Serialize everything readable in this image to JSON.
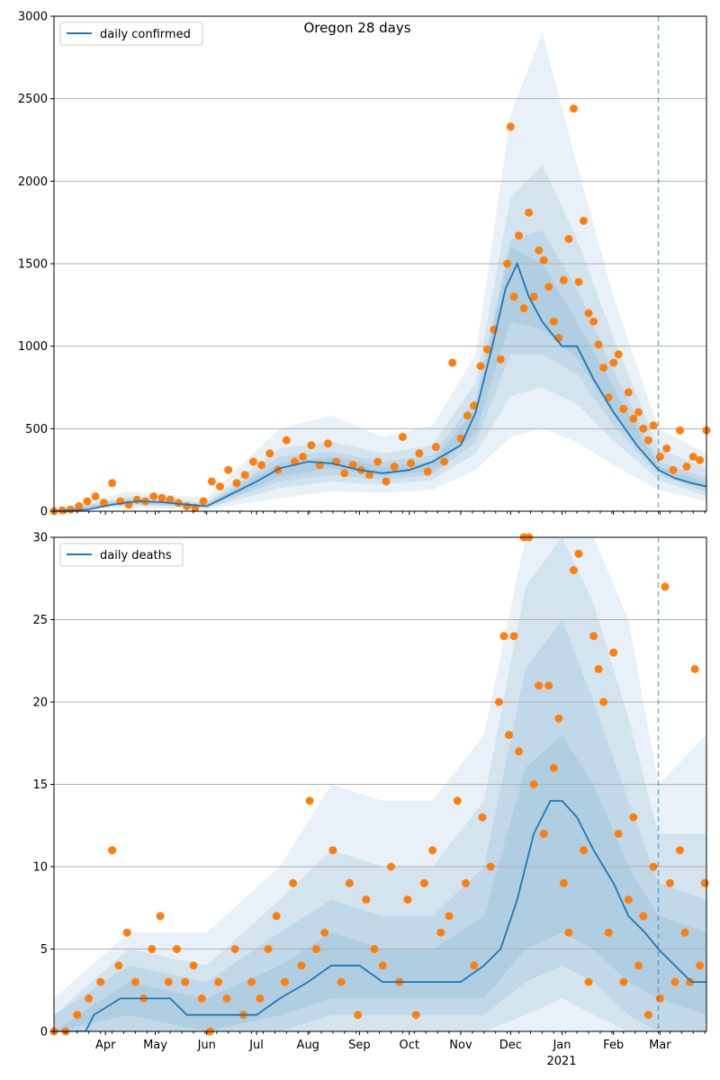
{
  "title": "Oregon 28 days",
  "colors": {
    "line": "#1f77b4",
    "dots": "#ff7f0e",
    "band": "#1f77b4",
    "grid": "#b0b0b0",
    "vline": "#1f77b4"
  },
  "chart_data": [
    {
      "type": "line",
      "legend": "daily confirmed",
      "legend_position": "upper-left",
      "grid": "horizontal",
      "ylim": [
        0,
        3000
      ],
      "yticks": [
        "0",
        "500",
        "1000",
        "1500",
        "2000",
        "2500",
        "3000"
      ],
      "x_range": [
        "2020-03-01",
        "2021-03-29"
      ],
      "forecast_start": "2021-02-28",
      "line": {
        "x": [
          "2020-03-01",
          "2020-03-21",
          "2020-04-05",
          "2020-04-20",
          "2020-05-05",
          "2020-05-20",
          "2020-06-01",
          "2020-06-15",
          "2020-07-01",
          "2020-07-15",
          "2020-08-01",
          "2020-08-15",
          "2020-09-01",
          "2020-09-15",
          "2020-10-01",
          "2020-10-15",
          "2020-11-01",
          "2020-11-10",
          "2020-11-20",
          "2020-11-28",
          "2020-12-05",
          "2020-12-12",
          "2020-12-20",
          "2021-01-01",
          "2021-01-10",
          "2021-01-20",
          "2021-02-01",
          "2021-02-15",
          "2021-02-28",
          "2021-03-10",
          "2021-03-20",
          "2021-03-29"
        ],
        "y": [
          0,
          10,
          40,
          60,
          55,
          40,
          30,
          100,
          180,
          260,
          300,
          290,
          250,
          230,
          250,
          300,
          400,
          600,
          1000,
          1350,
          1500,
          1300,
          1150,
          1000,
          1000,
          800,
          600,
          400,
          250,
          200,
          170,
          150
        ]
      },
      "bands": {
        "x": [
          "2020-03-01",
          "2020-04-15",
          "2020-06-01",
          "2020-07-15",
          "2020-08-15",
          "2020-09-15",
          "2020-10-15",
          "2020-11-10",
          "2020-12-01",
          "2020-12-20",
          "2021-01-10",
          "2021-02-01",
          "2021-02-28",
          "2021-03-29"
        ],
        "low80": [
          0,
          20,
          10,
          80,
          120,
          110,
          130,
          250,
          450,
          500,
          420,
          280,
          130,
          60
        ],
        "high80": [
          10,
          120,
          80,
          500,
          580,
          450,
          520,
          950,
          2400,
          2900,
          2100,
          1300,
          500,
          350
        ],
        "low60": [
          0,
          35,
          18,
          140,
          180,
          160,
          190,
          350,
          700,
          750,
          650,
          430,
          190,
          90
        ],
        "high60": [
          5,
          90,
          55,
          380,
          420,
          350,
          400,
          780,
          1900,
          2100,
          1650,
          1050,
          380,
          260
        ],
        "low40": [
          0,
          45,
          24,
          180,
          220,
          190,
          220,
          420,
          950,
          950,
          830,
          520,
          220,
          115
        ],
        "high40": [
          3,
          75,
          45,
          330,
          360,
          300,
          340,
          680,
          1650,
          1700,
          1350,
          850,
          300,
          200
        ],
        "low20": [
          0,
          50,
          28,
          210,
          260,
          215,
          245,
          480,
          1150,
          1100,
          930,
          580,
          245,
          135
        ],
        "high20": [
          2,
          65,
          38,
          290,
          330,
          270,
          300,
          620,
          1600,
          1500,
          1150,
          750,
          270,
          175
        ]
      },
      "observed": {
        "x": [
          "2020-03-01",
          "2020-03-06",
          "2020-03-11",
          "2020-03-16",
          "2020-03-21",
          "2020-03-26",
          "2020-03-31",
          "2020-04-05",
          "2020-04-10",
          "2020-04-15",
          "2020-04-20",
          "2020-04-25",
          "2020-04-30",
          "2020-05-05",
          "2020-05-10",
          "2020-05-15",
          "2020-05-20",
          "2020-05-25",
          "2020-05-30",
          "2020-06-04",
          "2020-06-09",
          "2020-06-14",
          "2020-06-19",
          "2020-06-24",
          "2020-06-29",
          "2020-07-04",
          "2020-07-09",
          "2020-07-14",
          "2020-07-19",
          "2020-07-24",
          "2020-07-29",
          "2020-08-03",
          "2020-08-08",
          "2020-08-13",
          "2020-08-18",
          "2020-08-23",
          "2020-08-28",
          "2020-09-02",
          "2020-09-07",
          "2020-09-12",
          "2020-09-17",
          "2020-09-22",
          "2020-09-27",
          "2020-10-02",
          "2020-10-07",
          "2020-10-12",
          "2020-10-17",
          "2020-10-22",
          "2020-10-27",
          "2020-11-01",
          "2020-11-05",
          "2020-11-09",
          "2020-11-13",
          "2020-11-17",
          "2020-11-21",
          "2020-11-25",
          "2020-11-29",
          "2020-12-01",
          "2020-12-03",
          "2020-12-06",
          "2020-12-09",
          "2020-12-12",
          "2020-12-15",
          "2020-12-18",
          "2020-12-21",
          "2020-12-24",
          "2020-12-27",
          "2020-12-30",
          "2021-01-02",
          "2021-01-05",
          "2021-01-08",
          "2021-01-11",
          "2021-01-14",
          "2021-01-17",
          "2021-01-20",
          "2021-01-23",
          "2021-01-26",
          "2021-01-29",
          "2021-02-01",
          "2021-02-04",
          "2021-02-07",
          "2021-02-10",
          "2021-02-13",
          "2021-02-16",
          "2021-02-19",
          "2021-02-22",
          "2021-02-25",
          "2021-03-01",
          "2021-03-05",
          "2021-03-09",
          "2021-03-13",
          "2021-03-17",
          "2021-03-21",
          "2021-03-25",
          "2021-03-29"
        ],
        "y": [
          0,
          5,
          10,
          30,
          60,
          90,
          50,
          170,
          60,
          40,
          70,
          60,
          90,
          80,
          70,
          50,
          30,
          20,
          60,
          180,
          150,
          250,
          170,
          220,
          300,
          280,
          350,
          250,
          430,
          300,
          330,
          400,
          280,
          410,
          300,
          230,
          280,
          250,
          220,
          300,
          180,
          270,
          450,
          290,
          350,
          240,
          390,
          300,
          900,
          440,
          580,
          640,
          880,
          980,
          1100,
          920,
          1500,
          2330,
          1300,
          1670,
          1230,
          1810,
          1300,
          1580,
          1520,
          1360,
          1150,
          1050,
          1400,
          1650,
          2440,
          1390,
          1760,
          1200,
          1150,
          1010,
          870,
          690,
          900,
          950,
          620,
          720,
          560,
          600,
          500,
          430,
          520,
          330,
          380,
          250,
          490,
          270,
          330,
          310,
          490
        ]
      }
    },
    {
      "type": "line",
      "legend": "daily deaths",
      "legend_position": "upper-left",
      "grid": "horizontal",
      "ylim": [
        0,
        30
      ],
      "yticks": [
        "0",
        "5",
        "10",
        "15",
        "20",
        "25",
        "30"
      ],
      "xtick_labels": [
        "Apr",
        "May",
        "Jun",
        "Jul",
        "Aug",
        "Sep",
        "Oct",
        "Nov",
        "Dec",
        "Jan",
        "Feb",
        "Mar"
      ],
      "xtick_dates": [
        "2020-04-01",
        "2020-05-01",
        "2020-06-01",
        "2020-07-01",
        "2020-08-01",
        "2020-09-01",
        "2020-10-01",
        "2020-11-01",
        "2020-12-01",
        "2021-01-01",
        "2021-02-01",
        "2021-03-01"
      ],
      "year_label": "2021",
      "x_range": [
        "2020-03-01",
        "2021-03-29"
      ],
      "forecast_start": "2021-02-28",
      "line": {
        "x": [
          "2020-03-01",
          "2020-03-20",
          "2020-03-25",
          "2020-04-10",
          "2020-05-01",
          "2020-05-10",
          "2020-05-20",
          "2020-06-01",
          "2020-06-15",
          "2020-07-01",
          "2020-07-15",
          "2020-08-01",
          "2020-08-15",
          "2020-09-01",
          "2020-09-15",
          "2020-10-01",
          "2020-10-15",
          "2020-11-01",
          "2020-11-15",
          "2020-11-25",
          "2020-12-05",
          "2020-12-15",
          "2020-12-25",
          "2021-01-01",
          "2021-01-10",
          "2021-01-20",
          "2021-02-01",
          "2021-02-10",
          "2021-02-20",
          "2021-02-28",
          "2021-03-10",
          "2021-03-20",
          "2021-03-29"
        ],
        "y": [
          0,
          0,
          1,
          2,
          2,
          2,
          1,
          1,
          1,
          1,
          2,
          3,
          4,
          4,
          3,
          3,
          3,
          3,
          4,
          5,
          8,
          12,
          14,
          14,
          13,
          11,
          9,
          7,
          6,
          5,
          4,
          3,
          3
        ]
      },
      "bands": {
        "x": [
          "2020-03-01",
          "2020-04-15",
          "2020-06-01",
          "2020-07-15",
          "2020-08-15",
          "2020-09-15",
          "2020-10-15",
          "2020-11-15",
          "2020-12-10",
          "2021-01-01",
          "2021-01-20",
          "2021-02-10",
          "2021-02-28",
          "2021-03-29"
        ],
        "low80": [
          0,
          0,
          0,
          0,
          0,
          0,
          0,
          0,
          0,
          0,
          0,
          0,
          0,
          0
        ],
        "high80": [
          2,
          6,
          6,
          10,
          15,
          14,
          14,
          18,
          30,
          30,
          30,
          25,
          15,
          18
        ],
        "low60": [
          0,
          0,
          0,
          0,
          0,
          0,
          0,
          0,
          1,
          2,
          1,
          0,
          0,
          0
        ],
        "high60": [
          1,
          5,
          4,
          8,
          11,
          10,
          10,
          14,
          27,
          30,
          26,
          19,
          12,
          12
        ],
        "low40": [
          0,
          0,
          0,
          0,
          1,
          1,
          1,
          1,
          3,
          4,
          3,
          1,
          0,
          0
        ],
        "high40": [
          1,
          4,
          3,
          6,
          8,
          7,
          7,
          10,
          22,
          25,
          20,
          14,
          9,
          8
        ],
        "low20": [
          0,
          1,
          0,
          1,
          2,
          2,
          2,
          2,
          5,
          6,
          5,
          3,
          2,
          1
        ],
        "high20": [
          0,
          3,
          2,
          4,
          6,
          5,
          5,
          7,
          16,
          18,
          15,
          10,
          7,
          6
        ]
      },
      "observed": {
        "x": [
          "2020-03-01",
          "2020-03-08",
          "2020-03-15",
          "2020-03-22",
          "2020-03-29",
          "2020-04-05",
          "2020-04-09",
          "2020-04-14",
          "2020-04-19",
          "2020-04-24",
          "2020-04-29",
          "2020-05-04",
          "2020-05-09",
          "2020-05-14",
          "2020-05-19",
          "2020-05-24",
          "2020-05-29",
          "2020-06-03",
          "2020-06-08",
          "2020-06-13",
          "2020-06-18",
          "2020-06-23",
          "2020-06-28",
          "2020-07-03",
          "2020-07-08",
          "2020-07-13",
          "2020-07-18",
          "2020-07-23",
          "2020-07-28",
          "2020-08-02",
          "2020-08-06",
          "2020-08-11",
          "2020-08-16",
          "2020-08-21",
          "2020-08-26",
          "2020-08-31",
          "2020-09-05",
          "2020-09-10",
          "2020-09-15",
          "2020-09-20",
          "2020-09-25",
          "2020-09-30",
          "2020-10-05",
          "2020-10-10",
          "2020-10-15",
          "2020-10-20",
          "2020-10-25",
          "2020-10-30",
          "2020-11-04",
          "2020-11-09",
          "2020-11-14",
          "2020-11-19",
          "2020-11-24",
          "2020-11-27",
          "2020-11-30",
          "2020-12-03",
          "2020-12-06",
          "2020-12-09",
          "2020-12-12",
          "2020-12-15",
          "2020-12-18",
          "2020-12-21",
          "2020-12-24",
          "2020-12-27",
          "2020-12-30",
          "2021-01-02",
          "2021-01-05",
          "2021-01-08",
          "2021-01-11",
          "2021-01-14",
          "2021-01-17",
          "2021-01-20",
          "2021-01-23",
          "2021-01-26",
          "2021-01-29",
          "2021-02-01",
          "2021-02-04",
          "2021-02-07",
          "2021-02-10",
          "2021-02-13",
          "2021-02-16",
          "2021-02-19",
          "2021-02-22",
          "2021-02-25",
          "2021-03-01",
          "2021-03-04",
          "2021-03-07",
          "2021-03-10",
          "2021-03-13",
          "2021-03-16",
          "2021-03-19",
          "2021-03-22",
          "2021-03-25",
          "2021-03-28"
        ],
        "y": [
          0,
          0,
          1,
          2,
          3,
          11,
          4,
          6,
          3,
          2,
          5,
          7,
          3,
          5,
          3,
          4,
          2,
          0,
          3,
          2,
          5,
          1,
          3,
          2,
          5,
          7,
          3,
          9,
          4,
          14,
          5,
          6,
          11,
          3,
          9,
          1,
          8,
          5,
          4,
          10,
          3,
          8,
          1,
          9,
          11,
          6,
          7,
          14,
          9,
          4,
          13,
          10,
          20,
          24,
          18,
          24,
          17,
          30,
          30,
          15,
          21,
          12,
          21,
          16,
          19,
          9,
          6,
          28,
          29,
          11,
          3,
          24,
          22,
          20,
          6,
          23,
          12,
          3,
          8,
          13,
          4,
          7,
          1,
          10,
          2,
          27,
          9,
          3,
          11,
          6,
          3,
          22,
          4,
          9
        ]
      }
    }
  ]
}
